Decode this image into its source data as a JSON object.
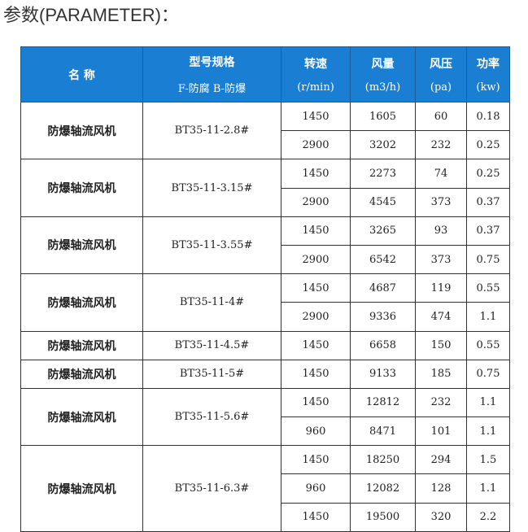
{
  "title": "参数(PARAMETER)：",
  "header": {
    "name": "名 称",
    "model": "型号规格",
    "model_sub": "F-防腐  B-防爆",
    "speed": "转速",
    "speed_unit": "(r/min)",
    "flow": "风量",
    "flow_unit": "(m3/h)",
    "pressure": "风压",
    "pressure_unit": "(pa)",
    "power": "功率",
    "power_unit": "(kw)"
  },
  "groups": [
    {
      "name": "防爆轴流风机",
      "model": "BT35-11-2.8#",
      "rows": [
        [
          "1450",
          "1605",
          "60",
          "0.18"
        ],
        [
          "2900",
          "3202",
          "232",
          "0.25"
        ]
      ]
    },
    {
      "name": "防爆轴流风机",
      "model": "BT35-11-3.15#",
      "rows": [
        [
          "1450",
          "2273",
          "74",
          "0.25"
        ],
        [
          "2900",
          "4545",
          "373",
          "0.37"
        ]
      ]
    },
    {
      "name": "防爆轴流风机",
      "model": "BT35-11-3.55#",
      "rows": [
        [
          "1450",
          "3265",
          "93",
          "0.37"
        ],
        [
          "2900",
          "6542",
          "373",
          "0.75"
        ]
      ]
    },
    {
      "name": "防爆轴流风机",
      "model": "BT35-11-4#",
      "rows": [
        [
          "1450",
          "4687",
          "119",
          "0.55"
        ],
        [
          "2900",
          "9336",
          "474",
          "1.1"
        ]
      ]
    },
    {
      "name": "防爆轴流风机",
      "model": "BT35-11-4.5#",
      "rows": [
        [
          "1450",
          "6658",
          "150",
          "0.55"
        ]
      ]
    },
    {
      "name": "防爆轴流风机",
      "model": "BT35-11-5#",
      "rows": [
        [
          "1450",
          "9133",
          "185",
          "0.75"
        ]
      ]
    },
    {
      "name": "防爆轴流风机",
      "model": "BT35-11-5.6#",
      "rows": [
        [
          "1450",
          "12812",
          "232",
          "1.1"
        ],
        [
          "960",
          "8471",
          "101",
          "1.1"
        ]
      ]
    },
    {
      "name": "防爆轴流风机",
      "model": "BT35-11-6.3#",
      "rows": [
        [
          "1450",
          "18250",
          "294",
          "1.5"
        ],
        [
          "960",
          "12082",
          "128",
          "1.1"
        ],
        [
          "1450",
          "19500",
          "320",
          "2.2"
        ]
      ]
    }
  ],
  "colors": {
    "header_bg": "#1a7fd2",
    "header_text": "#ffffff"
  }
}
